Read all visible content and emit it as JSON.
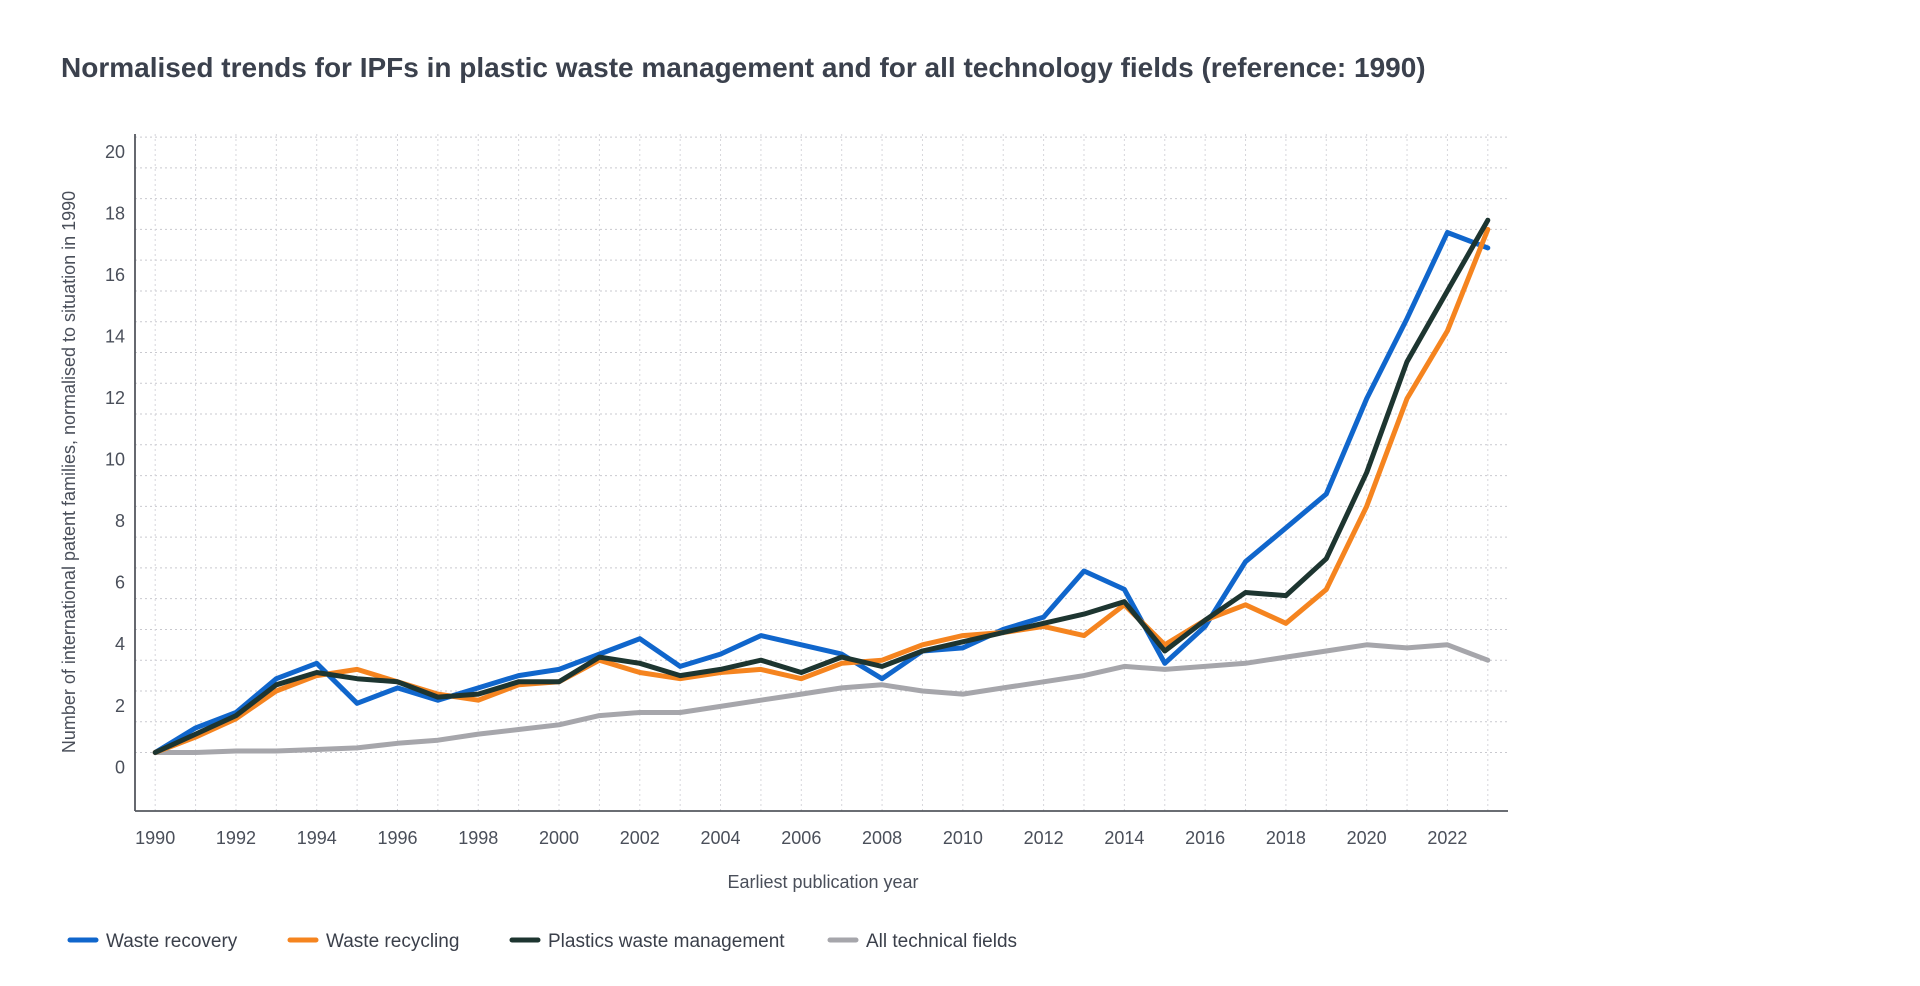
{
  "chart_data": {
    "type": "line",
    "title": "Normalised trends for IPFs in plastic waste management and for all technology fields (reference: 1990)",
    "xlabel": "Earliest publication year",
    "ylabel": "Number of international patent families, normalised to situation in 1990",
    "x": [
      1990,
      1991,
      1992,
      1993,
      1994,
      1995,
      1996,
      1997,
      1998,
      1999,
      2000,
      2001,
      2002,
      2003,
      2004,
      2005,
      2006,
      2007,
      2008,
      2009,
      2010,
      2011,
      2012,
      2013,
      2014,
      2015,
      2016,
      2017,
      2018,
      2019,
      2020,
      2021,
      2022,
      2023
    ],
    "x_tick_labels": [
      "1990",
      "1992",
      "1994",
      "1996",
      "1998",
      "2000",
      "2002",
      "2004",
      "2006",
      "2008",
      "2010",
      "2012",
      "2014",
      "2016",
      "2018",
      "2020",
      "2022"
    ],
    "y_tick_labels": [
      "0",
      "2",
      "4",
      "6",
      "8",
      "10",
      "12",
      "14",
      "16",
      "18",
      "20"
    ],
    "xlim": [
      1989.5,
      2023.5
    ],
    "ylim": [
      -0.9,
      21.1
    ],
    "grid": true,
    "legend_position": "bottom-left",
    "series": [
      {
        "name": "Waste recovery",
        "color": "#1066cc",
        "values": [
          1.0,
          1.8,
          2.3,
          3.4,
          3.9,
          2.6,
          3.1,
          2.7,
          3.1,
          3.5,
          3.7,
          4.2,
          4.7,
          3.8,
          4.2,
          4.8,
          4.5,
          4.2,
          3.4,
          4.3,
          4.4,
          5.0,
          5.4,
          6.9,
          6.3,
          3.9,
          5.1,
          7.2,
          8.3,
          9.4,
          12.5,
          15.1,
          17.9,
          17.4
        ]
      },
      {
        "name": "Waste recycling",
        "color": "#f5841f",
        "values": [
          1.0,
          1.5,
          2.1,
          3.0,
          3.5,
          3.7,
          3.3,
          2.9,
          2.7,
          3.2,
          3.3,
          4.0,
          3.6,
          3.4,
          3.6,
          3.7,
          3.4,
          3.9,
          4.0,
          4.5,
          4.8,
          4.9,
          5.1,
          4.8,
          5.8,
          4.5,
          5.3,
          5.8,
          5.2,
          6.3,
          9.0,
          12.5,
          14.7,
          18.0
        ]
      },
      {
        "name": "Plastics waste management",
        "color": "#1d3530",
        "values": [
          1.0,
          1.6,
          2.2,
          3.2,
          3.6,
          3.4,
          3.3,
          2.8,
          2.9,
          3.3,
          3.3,
          4.1,
          3.9,
          3.5,
          3.7,
          4.0,
          3.6,
          4.1,
          3.8,
          4.3,
          4.6,
          4.9,
          5.2,
          5.5,
          5.9,
          4.3,
          5.3,
          6.2,
          6.1,
          7.3,
          10.1,
          13.7,
          16.0,
          18.3
        ]
      },
      {
        "name": "All technical fields",
        "color": "#a6a6ab",
        "values": [
          1.0,
          1.0,
          1.05,
          1.05,
          1.1,
          1.15,
          1.3,
          1.4,
          1.6,
          1.75,
          1.9,
          2.2,
          2.3,
          2.3,
          2.5,
          2.7,
          2.9,
          3.1,
          3.2,
          3.0,
          2.9,
          3.1,
          3.3,
          3.5,
          3.8,
          3.7,
          3.8,
          3.9,
          4.1,
          4.3,
          4.5,
          4.4,
          4.5,
          4.0
        ]
      }
    ]
  }
}
